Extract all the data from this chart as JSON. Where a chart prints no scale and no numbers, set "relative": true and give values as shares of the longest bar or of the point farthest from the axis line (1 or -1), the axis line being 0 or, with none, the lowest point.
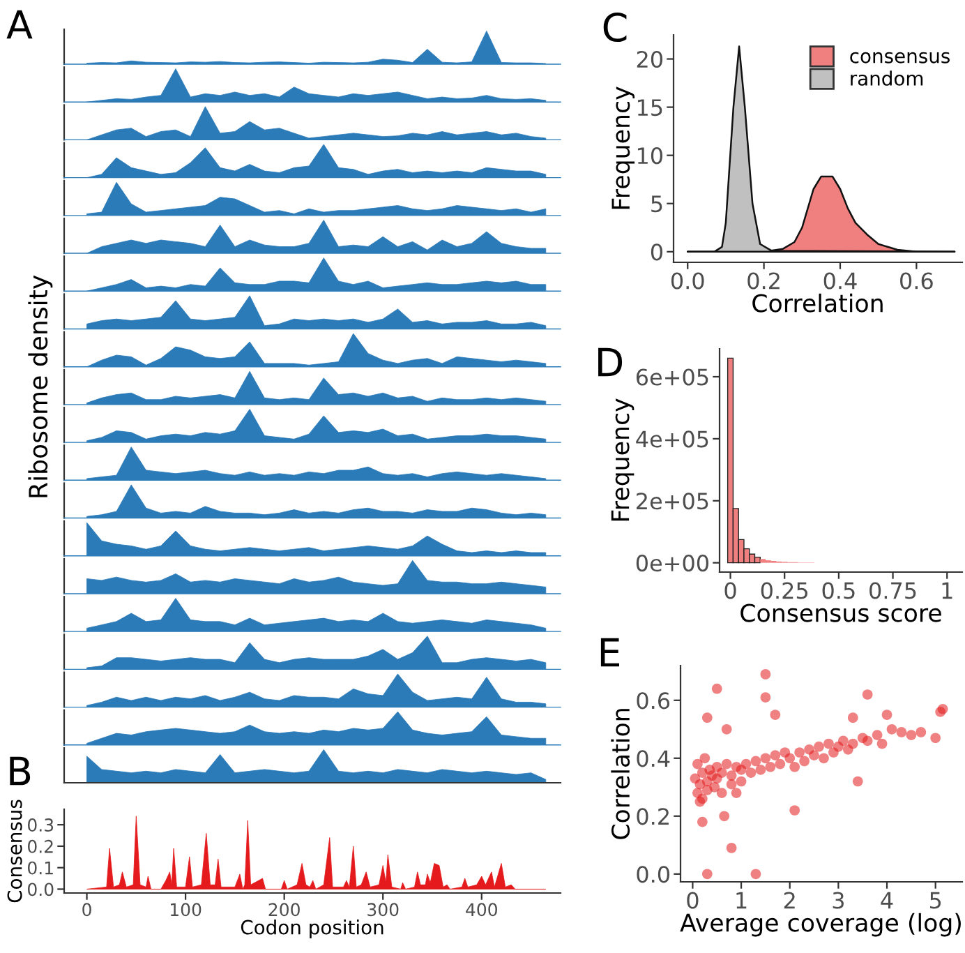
{
  "chart_data": [
    {
      "type": "area",
      "relative": true,
      "tick_labels": false,
      "xlim": [
        -23,
        480
      ],
      "annotations": [
        "A"
      ],
      "color": "#2b7bb9",
      "x": [
        0,
        15,
        30,
        45,
        60,
        75,
        90,
        105,
        120,
        135,
        150,
        165,
        180,
        195,
        210,
        225,
        240,
        255,
        270,
        285,
        300,
        315,
        330,
        345,
        360,
        375,
        390,
        405,
        420,
        435,
        450,
        465
      ],
      "values": [
        0.03,
        0.05,
        0.04,
        0.1,
        0.06,
        0.05,
        0.04,
        0.07,
        0.06,
        0.08,
        0.05,
        0.04,
        0.06,
        0.07,
        0.05,
        0.03,
        0.06,
        0.05,
        0.04,
        0.06,
        0.15,
        0.12,
        0.05,
        0.45,
        0.06,
        0.04,
        0.07,
        1.0,
        0.05,
        0.04,
        0.04,
        0.02
      ]
    },
    {
      "type": "area",
      "relative": true,
      "tick_labels": false,
      "xlim": [
        -23,
        480
      ],
      "color": "#2b7bb9",
      "x": [
        0,
        15,
        30,
        45,
        60,
        75,
        90,
        105,
        120,
        135,
        150,
        165,
        180,
        195,
        210,
        225,
        240,
        255,
        270,
        285,
        300,
        315,
        330,
        345,
        360,
        375,
        390,
        405,
        420,
        435,
        450,
        465
      ],
      "values": [
        0,
        0.05,
        0.1,
        0.08,
        0.15,
        0.2,
        1.0,
        0.15,
        0.25,
        0.2,
        0.3,
        0.2,
        0.25,
        0.15,
        0.45,
        0.25,
        0.2,
        0.15,
        0.25,
        0.2,
        0.25,
        0.3,
        0.2,
        0.1,
        0.15,
        0.1,
        0.12,
        0.2,
        0.1,
        0.08,
        0.1,
        0.05
      ]
    },
    {
      "type": "area",
      "relative": true,
      "tick_labels": false,
      "xlim": [
        -23,
        480
      ],
      "color": "#2b7bb9",
      "x": [
        0,
        15,
        30,
        45,
        60,
        75,
        90,
        105,
        120,
        135,
        150,
        165,
        180,
        195,
        210,
        225,
        240,
        255,
        270,
        285,
        300,
        315,
        330,
        345,
        360,
        375,
        390,
        405,
        420,
        435,
        450,
        465
      ],
      "values": [
        0,
        0.15,
        0.3,
        0.35,
        0.1,
        0.25,
        0.3,
        0.1,
        1.0,
        0.2,
        0.25,
        0.55,
        0.3,
        0.35,
        0.2,
        0.05,
        0.1,
        0.15,
        0.2,
        0.15,
        0.1,
        0.12,
        0.2,
        0.15,
        0.25,
        0.15,
        0.2,
        0.25,
        0.15,
        0.2,
        0.1,
        0.05
      ]
    },
    {
      "type": "area",
      "relative": true,
      "tick_labels": false,
      "xlim": [
        -23,
        480
      ],
      "color": "#2b7bb9",
      "x": [
        0,
        15,
        30,
        45,
        60,
        75,
        90,
        105,
        120,
        135,
        150,
        165,
        180,
        195,
        210,
        225,
        240,
        255,
        270,
        285,
        300,
        315,
        330,
        345,
        360,
        375,
        390,
        405,
        420,
        435,
        450,
        465
      ],
      "values": [
        0,
        0.1,
        0.6,
        0.3,
        0.2,
        0.1,
        0.15,
        0.45,
        0.9,
        0.3,
        0.2,
        0.4,
        0.2,
        0.15,
        0.3,
        0.35,
        1.0,
        0.3,
        0.25,
        0.1,
        0.2,
        0.25,
        0.15,
        0.2,
        0.15,
        0.2,
        0.15,
        0.3,
        0.25,
        0.2,
        0.2,
        0.1
      ]
    },
    {
      "type": "area",
      "relative": true,
      "tick_labels": false,
      "xlim": [
        -23,
        480
      ],
      "color": "#2b7bb9",
      "x": [
        0,
        15,
        30,
        45,
        60,
        75,
        90,
        105,
        120,
        135,
        150,
        165,
        180,
        195,
        210,
        225,
        240,
        255,
        270,
        285,
        300,
        315,
        330,
        345,
        360,
        375,
        390,
        405,
        420,
        435,
        450,
        465
      ],
      "values": [
        0.05,
        0.1,
        1.0,
        0.35,
        0.1,
        0.15,
        0.2,
        0.25,
        0.3,
        0.55,
        0.5,
        0.3,
        0.1,
        0.15,
        0.05,
        0.2,
        0.1,
        0.15,
        0.15,
        0.2,
        0.25,
        0.3,
        0.2,
        0.15,
        0.2,
        0.3,
        0.25,
        0.2,
        0.15,
        0.2,
        0.1,
        0.2
      ]
    },
    {
      "type": "area",
      "relative": true,
      "tick_labels": false,
      "xlim": [
        -23,
        480
      ],
      "color": "#2b7bb9",
      "x": [
        0,
        15,
        30,
        45,
        60,
        75,
        90,
        105,
        120,
        135,
        150,
        165,
        180,
        195,
        210,
        225,
        240,
        255,
        270,
        285,
        300,
        315,
        330,
        345,
        360,
        375,
        390,
        405,
        420,
        435,
        450,
        465
      ],
      "values": [
        0,
        0.2,
        0.3,
        0.4,
        0.3,
        0.4,
        0.35,
        0.3,
        0.2,
        0.85,
        0.2,
        0.4,
        0.25,
        0.2,
        0.2,
        0.3,
        1.0,
        0.2,
        0.25,
        0.2,
        0.5,
        0.2,
        0.35,
        0.1,
        0.4,
        0.2,
        0.3,
        0.65,
        0.3,
        0.2,
        0.15,
        0.15
      ]
    },
    {
      "type": "area",
      "relative": true,
      "tick_labels": false,
      "xlim": [
        -23,
        480
      ],
      "color": "#2b7bb9",
      "x": [
        0,
        15,
        30,
        45,
        60,
        75,
        90,
        105,
        120,
        135,
        150,
        165,
        180,
        195,
        210,
        225,
        240,
        255,
        270,
        285,
        300,
        315,
        330,
        345,
        360,
        375,
        390,
        405,
        420,
        435,
        450,
        465
      ],
      "values": [
        0,
        0.1,
        0.2,
        0.35,
        0.1,
        0.15,
        0.1,
        0.2,
        0.15,
        0.7,
        0.25,
        0.2,
        0.2,
        0.3,
        0.3,
        0.25,
        1.0,
        0.3,
        0.2,
        0.3,
        0.1,
        0.15,
        0.2,
        0.25,
        0.2,
        0.2,
        0.25,
        0.3,
        0.25,
        0.3,
        0.2,
        0.2
      ]
    },
    {
      "type": "area",
      "relative": true,
      "tick_labels": false,
      "xlim": [
        -23,
        480
      ],
      "color": "#2b7bb9",
      "x": [
        0,
        15,
        30,
        45,
        60,
        75,
        90,
        105,
        120,
        135,
        150,
        165,
        180,
        195,
        210,
        225,
        240,
        255,
        270,
        285,
        300,
        315,
        330,
        345,
        360,
        375,
        390,
        405,
        420,
        435,
        450,
        465
      ],
      "values": [
        0.15,
        0.25,
        0.3,
        0.25,
        0.3,
        0.35,
        0.85,
        0.3,
        0.25,
        0.3,
        0.35,
        1.0,
        0.1,
        0.15,
        0.3,
        0.25,
        0.3,
        0.25,
        0.3,
        0.2,
        0.3,
        0.6,
        0.2,
        0.25,
        0.15,
        0.2,
        0.2,
        0.25,
        0.15,
        0.15,
        0.2,
        0.1
      ]
    },
    {
      "type": "area",
      "relative": true,
      "tick_labels": false,
      "xlim": [
        -23,
        480
      ],
      "color": "#2b7bb9",
      "x": [
        0,
        15,
        30,
        45,
        60,
        75,
        90,
        105,
        120,
        135,
        150,
        165,
        180,
        195,
        210,
        225,
        240,
        255,
        270,
        285,
        300,
        315,
        330,
        345,
        360,
        375,
        390,
        405,
        420,
        435,
        450,
        465
      ],
      "values": [
        0,
        0.2,
        0.35,
        0.3,
        0.05,
        0.25,
        0.6,
        0.5,
        0.3,
        0.25,
        0.3,
        0.75,
        0.1,
        0.1,
        0.1,
        0.05,
        0.1,
        0.15,
        1.0,
        0.4,
        0.2,
        0.1,
        0.2,
        0.25,
        0.1,
        0.3,
        0.25,
        0.2,
        0.15,
        0.2,
        0.15,
        0.1
      ]
    },
    {
      "type": "area",
      "relative": true,
      "tick_labels": false,
      "xlim": [
        -23,
        480
      ],
      "ylabel": "Ribosome density",
      "color": "#2b7bb9",
      "x": [
        0,
        15,
        30,
        45,
        60,
        75,
        90,
        105,
        120,
        135,
        150,
        165,
        180,
        195,
        210,
        225,
        240,
        255,
        270,
        285,
        300,
        315,
        330,
        345,
        360,
        375,
        390,
        405,
        420,
        435,
        450,
        465
      ],
      "values": [
        0.05,
        0.2,
        0.3,
        0.35,
        0.15,
        0.15,
        0.25,
        0.2,
        0.25,
        0.3,
        0.2,
        1.0,
        0.2,
        0.15,
        0.2,
        0.15,
        0.8,
        0.3,
        0.35,
        0.25,
        0.35,
        0.2,
        0.25,
        0.1,
        0.2,
        0.15,
        0.15,
        0.2,
        0.15,
        0.2,
        0.15,
        0.1
      ]
    },
    {
      "type": "area",
      "relative": true,
      "tick_labels": false,
      "xlim": [
        -23,
        480
      ],
      "color": "#2b7bb9",
      "x": [
        0,
        15,
        30,
        45,
        60,
        75,
        90,
        105,
        120,
        135,
        150,
        165,
        180,
        195,
        210,
        225,
        240,
        255,
        270,
        285,
        300,
        315,
        330,
        345,
        360,
        375,
        390,
        405,
        420,
        435,
        450,
        465
      ],
      "values": [
        0.05,
        0.15,
        0.35,
        0.3,
        0.1,
        0.2,
        0.25,
        0.2,
        0.3,
        0.25,
        0.35,
        1.0,
        0.2,
        0.15,
        0.1,
        0.25,
        0.8,
        0.3,
        0.35,
        0.3,
        0.4,
        0.2,
        0.25,
        0.1,
        0.15,
        0.2,
        0.2,
        0.25,
        0.2,
        0.2,
        0.15,
        0.1
      ]
    },
    {
      "type": "area",
      "relative": true,
      "tick_labels": false,
      "xlim": [
        -23,
        480
      ],
      "color": "#2b7bb9",
      "x": [
        0,
        15,
        30,
        45,
        60,
        75,
        90,
        105,
        120,
        135,
        150,
        165,
        180,
        195,
        210,
        225,
        240,
        255,
        270,
        285,
        300,
        315,
        330,
        345,
        360,
        375,
        390,
        405,
        420,
        435,
        450,
        465
      ],
      "values": [
        0.05,
        0.1,
        0.15,
        1.0,
        0.3,
        0.25,
        0.2,
        0.25,
        0.3,
        0.2,
        0.15,
        0.25,
        0.15,
        0.2,
        0.15,
        0.25,
        0.2,
        0.3,
        0.3,
        0.4,
        0.2,
        0.15,
        0.2,
        0.1,
        0.2,
        0.25,
        0.2,
        0.15,
        0.2,
        0.15,
        0.1,
        0.05
      ]
    },
    {
      "type": "area",
      "relative": true,
      "tick_labels": false,
      "xlim": [
        -23,
        480
      ],
      "color": "#2b7bb9",
      "x": [
        0,
        15,
        30,
        45,
        60,
        75,
        90,
        105,
        120,
        135,
        150,
        165,
        180,
        195,
        210,
        225,
        240,
        255,
        270,
        285,
        300,
        315,
        330,
        345,
        360,
        375,
        390,
        405,
        420,
        435,
        450,
        465
      ],
      "values": [
        0.05,
        0.1,
        0.2,
        1.0,
        0.3,
        0.15,
        0.2,
        0.15,
        0.35,
        0.2,
        0.15,
        0.15,
        0.1,
        0.15,
        0.25,
        0.15,
        0.2,
        0.15,
        0.25,
        0.3,
        0.2,
        0.2,
        0.15,
        0.25,
        0.2,
        0.2,
        0.3,
        0.25,
        0.15,
        0.1,
        0.15,
        0.1
      ]
    },
    {
      "type": "area",
      "relative": true,
      "tick_labels": false,
      "xlim": [
        -23,
        480
      ],
      "color": "#2b7bb9",
      "x": [
        0,
        15,
        30,
        45,
        60,
        75,
        90,
        105,
        120,
        135,
        150,
        165,
        180,
        195,
        210,
        225,
        240,
        255,
        270,
        285,
        300,
        315,
        330,
        345,
        360,
        375,
        390,
        405,
        420,
        435,
        450,
        465
      ],
      "values": [
        1.0,
        0.45,
        0.35,
        0.3,
        0.2,
        0.3,
        0.75,
        0.3,
        0.2,
        0.15,
        0.2,
        0.25,
        0.2,
        0.15,
        0.2,
        0.25,
        0.15,
        0.2,
        0.25,
        0.3,
        0.25,
        0.2,
        0.3,
        0.6,
        0.35,
        0.15,
        0.1,
        0.15,
        0.1,
        0.15,
        0.1,
        0.1
      ]
    },
    {
      "type": "area",
      "relative": true,
      "tick_labels": false,
      "xlim": [
        -23,
        480
      ],
      "color": "#2b7bb9",
      "x": [
        0,
        15,
        30,
        45,
        60,
        75,
        90,
        105,
        120,
        135,
        150,
        165,
        180,
        195,
        210,
        225,
        240,
        255,
        270,
        285,
        300,
        315,
        330,
        345,
        360,
        375,
        390,
        405,
        420,
        435,
        450,
        465
      ],
      "values": [
        0.45,
        0.4,
        0.5,
        0.4,
        0.35,
        0.4,
        0.6,
        0.35,
        0.4,
        0.35,
        0.45,
        0.4,
        0.35,
        0.3,
        0.45,
        0.35,
        0.4,
        0.5,
        0.35,
        0.3,
        0.25,
        0.3,
        1.0,
        0.4,
        0.35,
        0.35,
        0.3,
        0.3,
        0.35,
        0.3,
        0.25,
        0.2
      ]
    },
    {
      "type": "area",
      "relative": true,
      "tick_labels": false,
      "xlim": [
        -23,
        480
      ],
      "color": "#2b7bb9",
      "x": [
        0,
        15,
        30,
        45,
        60,
        75,
        90,
        105,
        120,
        135,
        150,
        165,
        180,
        195,
        210,
        225,
        240,
        255,
        270,
        285,
        300,
        315,
        330,
        345,
        360,
        375,
        390,
        405,
        420,
        435,
        450,
        465
      ],
      "values": [
        0.1,
        0.2,
        0.3,
        0.55,
        0.3,
        0.35,
        1.0,
        0.35,
        0.3,
        0.3,
        0.2,
        0.4,
        0.2,
        0.25,
        0.3,
        0.35,
        0.4,
        0.3,
        0.35,
        0.3,
        0.55,
        0.3,
        0.25,
        0.3,
        0.35,
        0.3,
        0.25,
        0.35,
        0.3,
        0.25,
        0.2,
        0.1
      ]
    },
    {
      "type": "area",
      "relative": true,
      "tick_labels": false,
      "xlim": [
        -23,
        480
      ],
      "color": "#2b7bb9",
      "x": [
        0,
        15,
        30,
        45,
        60,
        75,
        90,
        105,
        120,
        135,
        150,
        165,
        180,
        195,
        210,
        225,
        240,
        255,
        270,
        285,
        300,
        315,
        330,
        345,
        360,
        375,
        390,
        405,
        420,
        435,
        450,
        465
      ],
      "values": [
        0.05,
        0.1,
        0.35,
        0.35,
        0.3,
        0.25,
        0.3,
        0.35,
        0.3,
        0.3,
        0.2,
        0.8,
        0.3,
        0.2,
        0.3,
        0.35,
        0.3,
        0.3,
        0.3,
        0.4,
        0.6,
        0.3,
        0.5,
        1.0,
        0.2,
        0.2,
        0.3,
        0.35,
        0.3,
        0.25,
        0.3,
        0.2
      ]
    },
    {
      "type": "area",
      "relative": true,
      "tick_labels": false,
      "xlim": [
        -23,
        480
      ],
      "color": "#2b7bb9",
      "x": [
        0,
        15,
        30,
        45,
        60,
        75,
        90,
        105,
        120,
        135,
        150,
        165,
        180,
        195,
        210,
        225,
        240,
        255,
        270,
        285,
        300,
        315,
        330,
        345,
        360,
        375,
        390,
        405,
        420,
        435,
        450,
        465
      ],
      "values": [
        0.05,
        0.15,
        0.3,
        0.2,
        0.3,
        0.2,
        0.3,
        0.25,
        0.35,
        0.2,
        0.3,
        0.45,
        0.25,
        0.2,
        0.35,
        0.3,
        0.3,
        0.25,
        0.55,
        0.4,
        0.35,
        1.0,
        0.45,
        0.2,
        0.25,
        0.3,
        0.25,
        0.9,
        0.25,
        0.15,
        0.15,
        0.1
      ]
    },
    {
      "type": "area",
      "relative": true,
      "tick_labels": false,
      "xlim": [
        -23,
        480
      ],
      "color": "#2b7bb9",
      "x": [
        0,
        15,
        30,
        45,
        60,
        75,
        90,
        105,
        120,
        135,
        150,
        165,
        180,
        195,
        210,
        225,
        240,
        255,
        270,
        285,
        300,
        315,
        330,
        345,
        360,
        375,
        390,
        405,
        420,
        435,
        450,
        465
      ],
      "values": [
        0.05,
        0.2,
        0.35,
        0.3,
        0.4,
        0.45,
        0.5,
        0.45,
        0.4,
        0.35,
        0.4,
        0.6,
        0.4,
        0.35,
        0.4,
        0.35,
        0.45,
        0.4,
        0.5,
        0.45,
        0.5,
        1.0,
        0.45,
        0.35,
        0.3,
        0.35,
        0.4,
        0.85,
        0.3,
        0.25,
        0.2,
        0.2
      ]
    },
    {
      "type": "area",
      "relative": true,
      "tick_labels": false,
      "xlim": [
        -23,
        480
      ],
      "color": "#2b7bb9",
      "x": [
        0,
        15,
        30,
        45,
        60,
        75,
        90,
        105,
        120,
        135,
        150,
        165,
        180,
        195,
        210,
        225,
        240,
        255,
        270,
        285,
        300,
        315,
        330,
        345,
        360,
        375,
        390,
        405,
        420,
        435,
        450,
        465
      ],
      "values": [
        0.8,
        0.4,
        0.35,
        0.3,
        0.35,
        0.3,
        0.4,
        0.35,
        0.3,
        0.85,
        0.3,
        0.35,
        0.4,
        0.35,
        0.3,
        0.35,
        1.0,
        0.35,
        0.3,
        0.35,
        0.3,
        0.4,
        0.35,
        0.3,
        0.4,
        0.35,
        0.3,
        0.35,
        0.3,
        0.25,
        0.3,
        0.1
      ]
    },
    {
      "type": "area",
      "annotations": [
        "B"
      ],
      "xlabel": "Codon position",
      "ylabel": "Consensus",
      "xlim": [
        -23,
        480
      ],
      "xticks": [
        0,
        100,
        200,
        300,
        400
      ],
      "ylim": [
        -0.018,
        0.372
      ],
      "yticks": [
        {
          "value": 0,
          "label": "0.0"
        },
        0.1,
        0.2,
        0.3
      ],
      "color": "#e41a1c",
      "x": [
        0,
        20,
        23,
        27,
        33,
        36,
        40,
        47,
        50,
        54,
        60,
        62,
        65,
        75,
        80,
        84,
        86,
        88,
        91,
        100,
        104,
        107,
        116,
        121,
        125,
        130,
        133,
        136,
        150,
        155,
        158,
        160,
        163,
        166,
        170,
        178,
        181,
        197,
        200,
        203,
        213,
        218,
        222,
        226,
        229,
        232,
        240,
        246,
        249,
        260,
        263,
        266,
        270,
        273,
        278,
        283,
        287,
        296,
        300,
        303,
        305,
        309,
        318,
        320,
        323,
        332,
        335,
        338,
        343,
        345,
        348,
        352,
        357,
        361,
        365,
        368,
        380,
        383,
        386,
        395,
        400,
        404,
        410,
        413,
        420,
        424,
        430,
        434,
        465
      ],
      "values": [
        0,
        0.01,
        0.19,
        0.01,
        0.02,
        0.08,
        0.01,
        0.02,
        0.34,
        0.02,
        0.01,
        0.06,
        0,
        0,
        0.04,
        0.08,
        0.02,
        0.19,
        0.01,
        0.01,
        0.15,
        0.01,
        0.02,
        0.26,
        0.02,
        0.02,
        0.14,
        0.01,
        0.01,
        0.07,
        0,
        0.02,
        0.32,
        0.02,
        0.03,
        0.05,
        0,
        0,
        0.04,
        0,
        0.02,
        0.12,
        0.02,
        0.01,
        0.04,
        0,
        0.02,
        0.24,
        0.01,
        0.01,
        0.04,
        0.01,
        0.2,
        0.01,
        0.02,
        0.08,
        0.01,
        0.02,
        0.11,
        0.03,
        0.16,
        0.01,
        0,
        0.03,
        0,
        0.01,
        0.08,
        0.02,
        0.02,
        0.07,
        0.03,
        0.12,
        0.11,
        0.01,
        0.02,
        0,
        0.01,
        0.05,
        0.01,
        0.02,
        0.06,
        0.02,
        0.08,
        0.01,
        0.12,
        0.01,
        0.02,
        0,
        0
      ]
    },
    {
      "type": "area",
      "annotations": [
        "C"
      ],
      "xlabel": "Correlation",
      "ylabel": "Frequency",
      "xlim": [
        -0.037,
        0.72
      ],
      "xticks": [
        {
          "value": 0,
          "label": "0.0"
        },
        0.2,
        0.4,
        0.6
      ],
      "ylim": [
        -1.1,
        22.5
      ],
      "yticks": [
        0,
        5,
        10,
        15,
        20
      ],
      "legend": "top right",
      "series": [
        {
          "name": "consensus",
          "color": "#f08080",
          "x": [
            0,
            0.2,
            0.25,
            0.28,
            0.3,
            0.33,
            0.35,
            0.38,
            0.4,
            0.42,
            0.44,
            0.47,
            0.5,
            0.55,
            0.6,
            0.7
          ],
          "values": [
            0,
            0,
            0.3,
            1,
            2.5,
            6.5,
            7.8,
            7.8,
            6.5,
            4.5,
            3,
            1.8,
            0.8,
            0.2,
            0,
            0
          ]
        },
        {
          "name": "random",
          "color": "#c0c0c0",
          "x": [
            0,
            0.07,
            0.09,
            0.1,
            0.12,
            0.135,
            0.15,
            0.16,
            0.17,
            0.19,
            0.22,
            0.7
          ],
          "values": [
            0,
            0,
            0.5,
            3,
            15,
            21.3,
            15,
            10,
            5,
            0.8,
            0.1,
            0
          ]
        }
      ]
    },
    {
      "type": "histogram",
      "annotations": [
        "D"
      ],
      "xlabel": "Consensus score",
      "ylabel": "Frequency",
      "color": "#f08080",
      "xlim": [
        -0.05,
        1.07
      ],
      "xticks": [
        0,
        0.25,
        0.5,
        0.75,
        1
      ],
      "ylim": [
        -30000,
        690000
      ],
      "yticks": [
        {
          "value": 0,
          "label": "0e+00"
        },
        {
          "value": 200000,
          "label": "2e+05"
        },
        {
          "value": 400000,
          "label": "4e+05"
        },
        {
          "value": 600000,
          "label": "6e+05"
        }
      ],
      "bins": [
        -0.0125,
        0.0125,
        0.0375,
        0.0625,
        0.0875,
        0.1125,
        0.1375,
        0.1625,
        0.1875,
        0.2125,
        0.2375,
        0.2625,
        0.2875,
        0.3125,
        0.3375,
        0.3625,
        0.3875,
        0.4125,
        0.4375,
        0.4625,
        0.4875,
        0.5125,
        0.5375,
        0.5625,
        0.5875,
        0.6125,
        0.6375,
        0.6625,
        0.6875,
        0.7125,
        0.7375,
        0.7625,
        0.7875,
        0.8125,
        0.8375,
        0.8625,
        0.8875,
        0.9125,
        0.9375,
        0.9625,
        0.9875,
        1.0125
      ],
      "values": [
        660000,
        175000,
        75000,
        45000,
        28000,
        18000,
        12000,
        8000,
        6000,
        4000,
        3000,
        2000,
        2000,
        1000,
        1000,
        1000,
        0,
        0,
        0,
        0,
        0,
        0,
        0,
        0,
        0,
        0,
        0,
        0,
        0,
        0,
        0,
        0,
        0,
        0,
        0,
        0,
        0,
        0,
        0,
        0,
        0
      ]
    },
    {
      "type": "scatter",
      "annotations": [
        "E"
      ],
      "xlabel": "Average coverage (log)",
      "ylabel": "Correlation",
      "color": "#e41a1c",
      "xlim": [
        -0.25,
        5.55
      ],
      "xticks": [
        0,
        1,
        2,
        3,
        4,
        5
      ],
      "ylim": [
        -0.027,
        0.72
      ],
      "yticks": [
        {
          "value": 0,
          "label": "0.0"
        },
        0.2,
        0.4,
        0.6
      ],
      "x": [
        0.05,
        0.1,
        0.1,
        0.15,
        0.2,
        0.2,
        0.25,
        0.3,
        0.3,
        0.35,
        0.4,
        0.45,
        0.5,
        0.5,
        0.6,
        0.6,
        0.7,
        0.8,
        0.8,
        0.9,
        1.0,
        1.0,
        1.1,
        1.2,
        1.3,
        1.4,
        1.5,
        1.6,
        1.7,
        1.8,
        1.9,
        2.0,
        2.1,
        2.2,
        2.3,
        2.4,
        2.5,
        2.6,
        2.7,
        2.8,
        2.9,
        3.0,
        3.1,
        3.2,
        3.3,
        3.5,
        3.6,
        3.8,
        3.9,
        4.1,
        4.3,
        4.5,
        4.7,
        5.0,
        5.1,
        5.15,
        0.5,
        1.5,
        1.5,
        0.3,
        1.3,
        0.8,
        0.3,
        3.6,
        4.0,
        3.4,
        2.1,
        0.7,
        1.7,
        0.2,
        0.65,
        3.3,
        0.15,
        0.9
      ],
      "values": [
        0.33,
        0.28,
        0.38,
        0.31,
        0.35,
        0.26,
        0.4,
        0.32,
        0.29,
        0.36,
        0.34,
        0.3,
        0.37,
        0.33,
        0.35,
        0.28,
        0.38,
        0.34,
        0.31,
        0.37,
        0.36,
        0.32,
        0.38,
        0.35,
        0.39,
        0.36,
        0.4,
        0.37,
        0.41,
        0.38,
        0.42,
        0.4,
        0.37,
        0.42,
        0.39,
        0.43,
        0.41,
        0.44,
        0.4,
        0.45,
        0.42,
        0.44,
        0.46,
        0.43,
        0.45,
        0.47,
        0.46,
        0.48,
        0.45,
        0.5,
        0.49,
        0.48,
        0.49,
        0.47,
        0.56,
        0.57,
        0.64,
        0.69,
        0.61,
        0.0,
        0.0,
        0.09,
        0.54,
        0.62,
        0.55,
        0.32,
        0.22,
        0.5,
        0.55,
        0.18,
        0.2,
        0.54,
        0.25,
        0.28
      ]
    }
  ]
}
